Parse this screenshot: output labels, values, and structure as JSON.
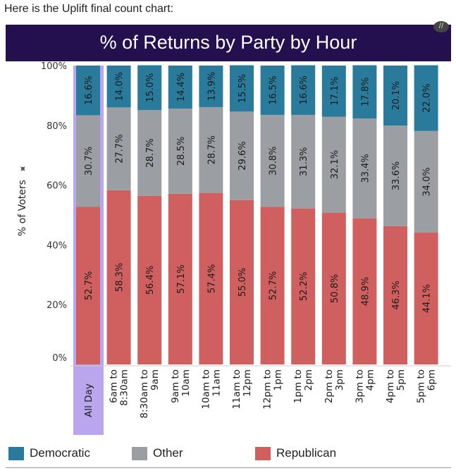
{
  "intro_text": "Here is the Uplift final count chart:",
  "chart_data": {
    "type": "bar",
    "stacked": true,
    "title": "% of Returns by Party by Hour",
    "xlabel": "",
    "ylabel": "% of Voters",
    "ylim": [
      0,
      100
    ],
    "yticks": [
      "0%",
      "20%",
      "40%",
      "60%",
      "80%",
      "100%"
    ],
    "categories": [
      [
        "All Day"
      ],
      [
        "6am to",
        "8:30am"
      ],
      [
        "8:30am to",
        "9am"
      ],
      [
        "9am to",
        "10am"
      ],
      [
        "10am to",
        "11am"
      ],
      [
        "11am to",
        "12pm"
      ],
      [
        "12pm to",
        "1pm"
      ],
      [
        "1pm to",
        "2pm"
      ],
      [
        "2pm to",
        "3pm"
      ],
      [
        "3pm to",
        "4pm"
      ],
      [
        "4pm to",
        "5pm"
      ],
      [
        "5pm to",
        "6pm"
      ]
    ],
    "highlighted_category": "All Day",
    "series": [
      {
        "name": "Republican",
        "color": "#d0605f",
        "values": [
          52.7,
          58.3,
          56.4,
          57.1,
          57.4,
          55.0,
          52.7,
          52.2,
          50.8,
          48.9,
          46.3,
          44.1
        ]
      },
      {
        "name": "Other",
        "color": "#9b9ea2",
        "values": [
          30.7,
          27.7,
          28.7,
          28.5,
          28.7,
          29.6,
          30.8,
          31.3,
          32.1,
          33.4,
          33.6,
          34.0
        ]
      },
      {
        "name": "Democratic",
        "color": "#2a7b9b",
        "values": [
          16.6,
          14.0,
          15.0,
          14.4,
          13.9,
          15.5,
          16.5,
          16.6,
          17.1,
          17.8,
          20.1,
          22.0
        ]
      }
    ],
    "legend": [
      {
        "name": "Democratic",
        "color": "#2a7b9b"
      },
      {
        "name": "Other",
        "color": "#9b9ea2"
      },
      {
        "name": "Republican",
        "color": "#d0605f"
      }
    ],
    "legend_position": "bottom"
  }
}
